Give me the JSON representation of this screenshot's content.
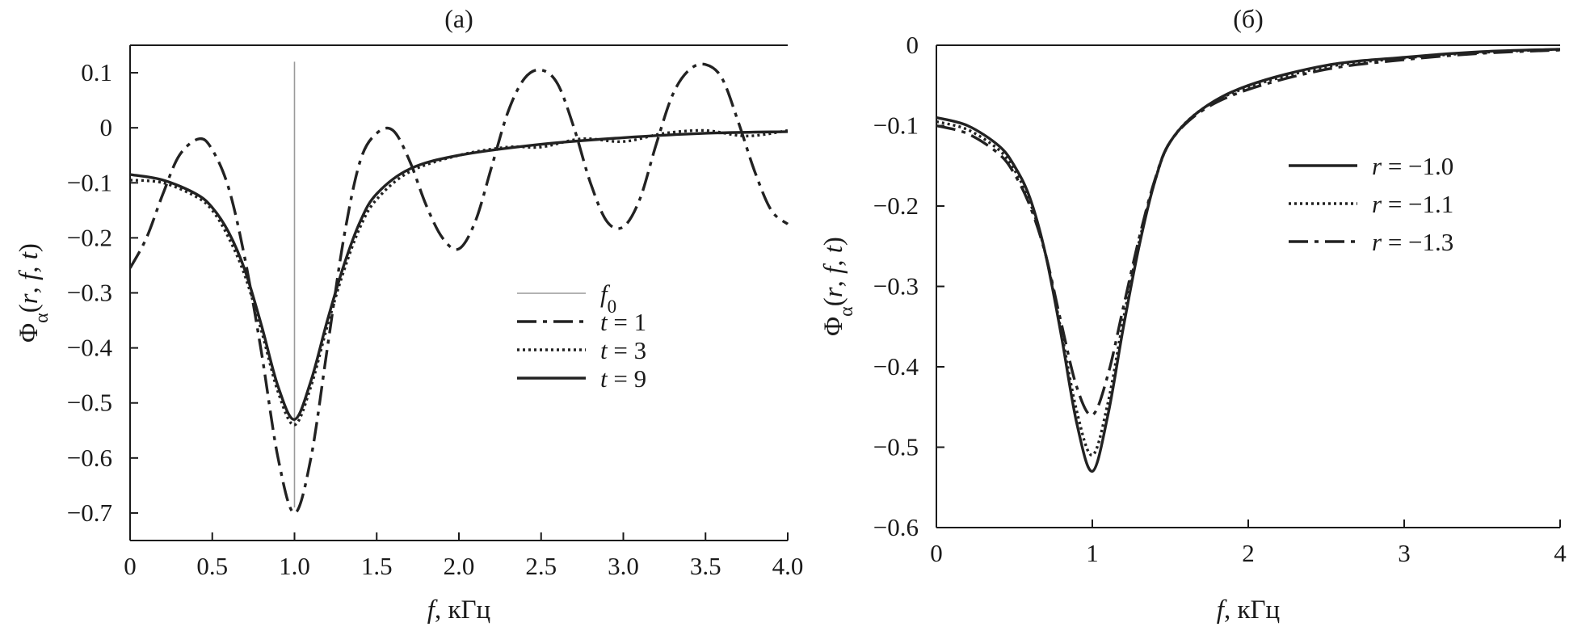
{
  "chart_data": [
    {
      "type": "line",
      "title": "(a)",
      "xlabel": {
        "var": "f",
        "unit": ", кГц"
      },
      "ylabel": {
        "sym": "Φ",
        "sub": "α",
        "args": [
          "r",
          "f",
          "t"
        ]
      },
      "xlim": [
        0,
        4
      ],
      "ylim": [
        -0.75,
        0.15
      ],
      "xticks": [
        0,
        0.5,
        1.0,
        1.5,
        2.0,
        2.5,
        3.0,
        3.5,
        4.0
      ],
      "xtick_labels": [
        "0",
        "0.5",
        "1.0",
        "1.5",
        "2.0",
        "2.5",
        "3.0",
        "3.5",
        "4.0"
      ],
      "yticks": [
        0.1,
        0,
        -0.1,
        -0.2,
        -0.3,
        -0.4,
        -0.5,
        -0.6,
        -0.7
      ],
      "ytick_labels": [
        "0.1",
        "0",
        "−0.1",
        "−0.2",
        "−0.3",
        "−0.4",
        "−0.5",
        "−0.6",
        "−0.7"
      ],
      "legend_position": "center-right",
      "marker_line": {
        "name": "f0",
        "label_var": "f",
        "label_sub": "0",
        "x": 1.0,
        "y_range": [
          -0.69,
          0.12
        ]
      },
      "series": [
        {
          "name": "t = 1",
          "label_var": "t",
          "label_rest": " = 1",
          "style": "dashdot",
          "x": [
            0,
            0.1,
            0.2,
            0.3,
            0.42,
            0.5,
            0.6,
            0.7,
            0.8,
            0.9,
            1.0,
            1.1,
            1.2,
            1.3,
            1.4,
            1.5,
            1.6,
            1.7,
            1.8,
            1.9,
            2.0,
            2.1,
            2.2,
            2.3,
            2.4,
            2.5,
            2.6,
            2.7,
            2.8,
            2.9,
            3.0,
            3.1,
            3.2,
            3.3,
            3.4,
            3.5,
            3.6,
            3.7,
            3.8,
            3.9,
            4.0
          ],
          "y": [
            -0.255,
            -0.2,
            -0.12,
            -0.05,
            -0.02,
            -0.04,
            -0.11,
            -0.24,
            -0.41,
            -0.6,
            -0.7,
            -0.6,
            -0.4,
            -0.2,
            -0.06,
            -0.01,
            -0.005,
            -0.06,
            -0.14,
            -0.2,
            -0.22,
            -0.17,
            -0.07,
            0.03,
            0.09,
            0.105,
            0.08,
            0.0,
            -0.1,
            -0.17,
            -0.18,
            -0.13,
            -0.03,
            0.06,
            0.105,
            0.115,
            0.09,
            0.01,
            -0.08,
            -0.15,
            -0.175
          ]
        },
        {
          "name": "t = 3",
          "label_var": "t",
          "label_rest": " = 3",
          "style": "dotted",
          "x": [
            0,
            0.2,
            0.4,
            0.5,
            0.6,
            0.7,
            0.8,
            0.9,
            1.0,
            1.1,
            1.2,
            1.3,
            1.4,
            1.5,
            1.7,
            2.0,
            2.3,
            2.5,
            2.75,
            3.0,
            3.25,
            3.5,
            3.75,
            4.0
          ],
          "y": [
            -0.095,
            -0.1,
            -0.125,
            -0.15,
            -0.2,
            -0.27,
            -0.37,
            -0.48,
            -0.54,
            -0.47,
            -0.36,
            -0.26,
            -0.18,
            -0.13,
            -0.08,
            -0.05,
            -0.035,
            -0.035,
            -0.02,
            -0.025,
            -0.01,
            -0.005,
            -0.015,
            -0.005
          ]
        },
        {
          "name": "t = 9",
          "label_var": "t",
          "label_rest": " = 9",
          "style": "solid",
          "x": [
            0,
            0.2,
            0.4,
            0.5,
            0.6,
            0.7,
            0.8,
            0.9,
            1.0,
            1.1,
            1.2,
            1.3,
            1.4,
            1.5,
            1.7,
            2.0,
            2.5,
            3.0,
            3.5,
            4.0
          ],
          "y": [
            -0.085,
            -0.095,
            -0.12,
            -0.145,
            -0.19,
            -0.26,
            -0.36,
            -0.47,
            -0.53,
            -0.46,
            -0.35,
            -0.25,
            -0.17,
            -0.12,
            -0.075,
            -0.05,
            -0.03,
            -0.018,
            -0.01,
            -0.007
          ]
        }
      ]
    },
    {
      "type": "line",
      "title": "(б)",
      "xlabel": {
        "var": "f",
        "unit": ", кГц"
      },
      "ylabel": {
        "sym": "Φ",
        "sub": "α",
        "args": [
          "r",
          "f",
          "t"
        ]
      },
      "xlim": [
        0,
        4
      ],
      "ylim": [
        -0.6,
        0
      ],
      "xticks": [
        0,
        1,
        2,
        3,
        4
      ],
      "xtick_labels": [
        "0",
        "1",
        "2",
        "3",
        "4"
      ],
      "yticks": [
        0,
        -0.1,
        -0.2,
        -0.3,
        -0.4,
        -0.5,
        -0.6
      ],
      "ytick_labels": [
        "0",
        "−0.1",
        "−0.2",
        "−0.3",
        "−0.4",
        "−0.5",
        "−0.6"
      ],
      "legend_position": "center-right",
      "series": [
        {
          "name": "r = −1.0",
          "label_var": "r",
          "label_rest": " = −1.0",
          "style": "solid",
          "x": [
            0,
            0.2,
            0.4,
            0.5,
            0.6,
            0.7,
            0.8,
            0.9,
            1.0,
            1.1,
            1.2,
            1.3,
            1.4,
            1.5,
            1.7,
            2.0,
            2.5,
            3.0,
            3.5,
            4.0
          ],
          "y": [
            -0.09,
            -0.1,
            -0.125,
            -0.15,
            -0.19,
            -0.26,
            -0.36,
            -0.47,
            -0.53,
            -0.46,
            -0.35,
            -0.25,
            -0.17,
            -0.12,
            -0.08,
            -0.05,
            -0.025,
            -0.015,
            -0.008,
            -0.005
          ]
        },
        {
          "name": "r = −1.1",
          "label_var": "r",
          "label_rest": " = −1.1",
          "style": "dotted",
          "x": [
            0,
            0.2,
            0.4,
            0.5,
            0.6,
            0.7,
            0.8,
            0.9,
            1.0,
            1.1,
            1.2,
            1.3,
            1.4,
            1.5,
            1.7,
            2.0,
            2.5,
            3.0,
            3.5,
            4.0
          ],
          "y": [
            -0.095,
            -0.105,
            -0.13,
            -0.155,
            -0.195,
            -0.26,
            -0.355,
            -0.455,
            -0.51,
            -0.445,
            -0.34,
            -0.245,
            -0.17,
            -0.12,
            -0.08,
            -0.052,
            -0.027,
            -0.016,
            -0.009,
            -0.005
          ]
        },
        {
          "name": "r = −1.3",
          "label_var": "r",
          "label_rest": " = −1.3",
          "style": "dashdot",
          "x": [
            0,
            0.2,
            0.4,
            0.5,
            0.6,
            0.7,
            0.8,
            0.9,
            1.0,
            1.1,
            1.2,
            1.3,
            1.4,
            1.5,
            1.7,
            2.0,
            2.5,
            3.0,
            3.5,
            4.0
          ],
          "y": [
            -0.1,
            -0.11,
            -0.135,
            -0.16,
            -0.2,
            -0.26,
            -0.345,
            -0.425,
            -0.46,
            -0.41,
            -0.325,
            -0.24,
            -0.168,
            -0.12,
            -0.082,
            -0.055,
            -0.03,
            -0.018,
            -0.01,
            -0.006
          ]
        }
      ]
    }
  ]
}
